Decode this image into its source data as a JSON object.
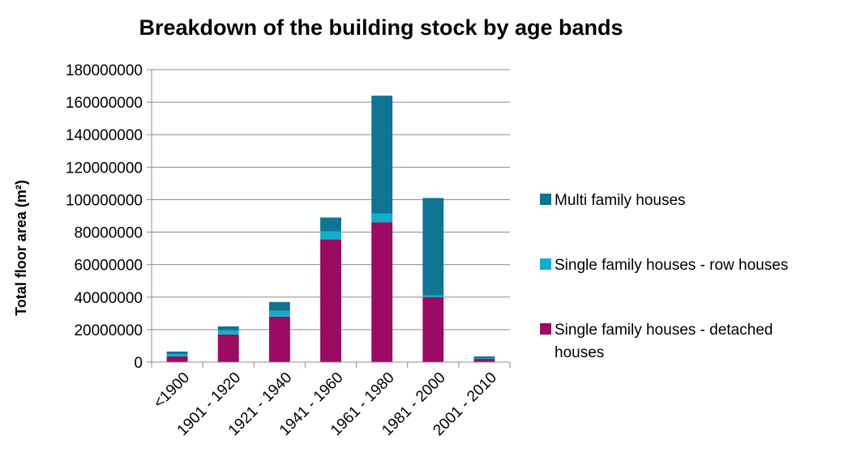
{
  "chart_data": {
    "type": "bar",
    "stacked": true,
    "title": "Breakdown of the building stock by age bands",
    "xlabel": "",
    "ylabel": "Total floor area (m²)",
    "ylim": [
      0,
      180000000
    ],
    "yticks": [
      0,
      20000000,
      40000000,
      60000000,
      80000000,
      100000000,
      120000000,
      140000000,
      160000000,
      180000000
    ],
    "grid": true,
    "legend_position": "right",
    "categories": [
      "<1900",
      "1901 - 1920",
      "1921 - 1940",
      "1941 - 1960",
      "1961 - 1980",
      "1981 - 2000",
      "2001 - 2010"
    ],
    "series": [
      {
        "name": "Single family houses - detached houses",
        "color": "#9b0a63",
        "values": [
          3500000,
          17000000,
          28000000,
          75500000,
          86000000,
          40000000,
          2000000
        ]
      },
      {
        "name": "Single family houses - row houses",
        "color": "#12aecb",
        "values": [
          1500000,
          2500000,
          3500000,
          5000000,
          5500000,
          1000000,
          500000
        ]
      },
      {
        "name": "Multi family houses",
        "color": "#0e7592",
        "values": [
          1500000,
          2500000,
          5500000,
          8500000,
          72500000,
          60000000,
          1000000
        ]
      }
    ],
    "legend_order": [
      2,
      1,
      0
    ]
  }
}
